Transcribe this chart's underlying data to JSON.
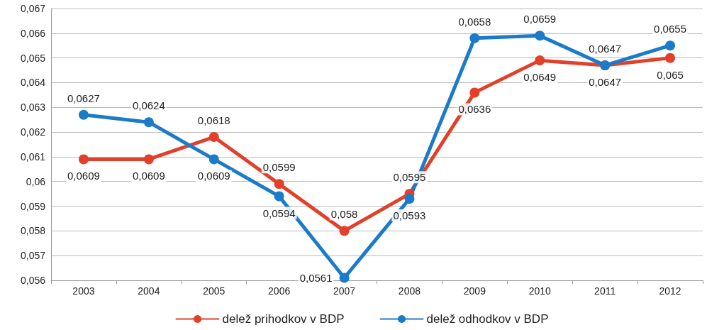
{
  "chart_data": {
    "type": "line",
    "categories": [
      "2003",
      "2004",
      "2005",
      "2006",
      "2007",
      "2008",
      "2009",
      "2010",
      "2011",
      "2012"
    ],
    "series": [
      {
        "name": "delež prihodkov v BDP",
        "color": "#e2402a",
        "values": [
          0.0609,
          0.0609,
          0.0618,
          0.0599,
          0.058,
          0.0595,
          0.0636,
          0.0649,
          0.0647,
          0.065
        ],
        "value_labels": [
          "0,0609",
          "0,0609",
          "0,0618",
          "0,0599",
          "0,058",
          "0,0595",
          "0,0636",
          "0,0649",
          "0,0647",
          "0,065"
        ]
      },
      {
        "name": "delež odhodkov v BDP",
        "color": "#1b7bc9",
        "values": [
          0.0627,
          0.0624,
          0.0609,
          0.0594,
          0.0561,
          0.0593,
          0.0658,
          0.0659,
          0.0647,
          0.0655
        ],
        "value_labels": [
          "0,0627",
          "0,0624",
          "0,0609",
          "0,0594",
          "0,0561",
          "0,0593",
          "0,0658",
          "0,0659",
          "0,0647",
          "0,0655"
        ]
      }
    ],
    "ylim": [
      0.056,
      0.067
    ],
    "yticks": [
      {
        "value": 0.056,
        "label": "0,056"
      },
      {
        "value": 0.057,
        "label": "0,057"
      },
      {
        "value": 0.058,
        "label": "0,058"
      },
      {
        "value": 0.059,
        "label": "0,059"
      },
      {
        "value": 0.06,
        "label": "0,06"
      },
      {
        "value": 0.061,
        "label": "0,061"
      },
      {
        "value": 0.062,
        "label": "0,062"
      },
      {
        "value": 0.063,
        "label": "0,063"
      },
      {
        "value": 0.064,
        "label": "0,064"
      },
      {
        "value": 0.065,
        "label": "0,065"
      },
      {
        "value": 0.066,
        "label": "0,066"
      },
      {
        "value": 0.067,
        "label": "0,067"
      }
    ],
    "grid": "y",
    "legend": "bottom",
    "marker": "circle",
    "line_style": "solid"
  }
}
